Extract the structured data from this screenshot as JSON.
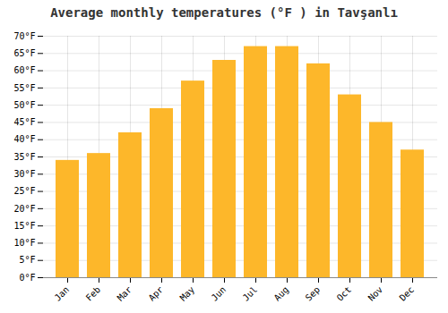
{
  "chart_data": {
    "type": "bar",
    "title": "Average monthly temperatures (°F ) in Tavşanlı",
    "categories": [
      "Jan",
      "Feb",
      "Mar",
      "Apr",
      "May",
      "Jun",
      "Jul",
      "Aug",
      "Sep",
      "Oct",
      "Nov",
      "Dec"
    ],
    "values": [
      34,
      36,
      42,
      49,
      57,
      63,
      67,
      67,
      62,
      53,
      45,
      37
    ],
    "color": "#FDB72A",
    "ylim": [
      0,
      70
    ],
    "yticks": [
      {
        "value": 0,
        "label": "0°F"
      },
      {
        "value": 5,
        "label": "5°F"
      },
      {
        "value": 10,
        "label": "10°F"
      },
      {
        "value": 15,
        "label": "15°F"
      },
      {
        "value": 20,
        "label": "20°F"
      },
      {
        "value": 25,
        "label": "25°F"
      },
      {
        "value": 30,
        "label": "30°F"
      },
      {
        "value": 35,
        "label": "35°F"
      },
      {
        "value": 40,
        "label": "40°F"
      },
      {
        "value": 45,
        "label": "45°F"
      },
      {
        "value": 50,
        "label": "50°F"
      },
      {
        "value": 55,
        "label": "55°F"
      },
      {
        "value": 60,
        "label": "60°F"
      },
      {
        "value": 65,
        "label": "65°F"
      },
      {
        "value": 70,
        "label": "70°F"
      }
    ],
    "grid": true
  }
}
